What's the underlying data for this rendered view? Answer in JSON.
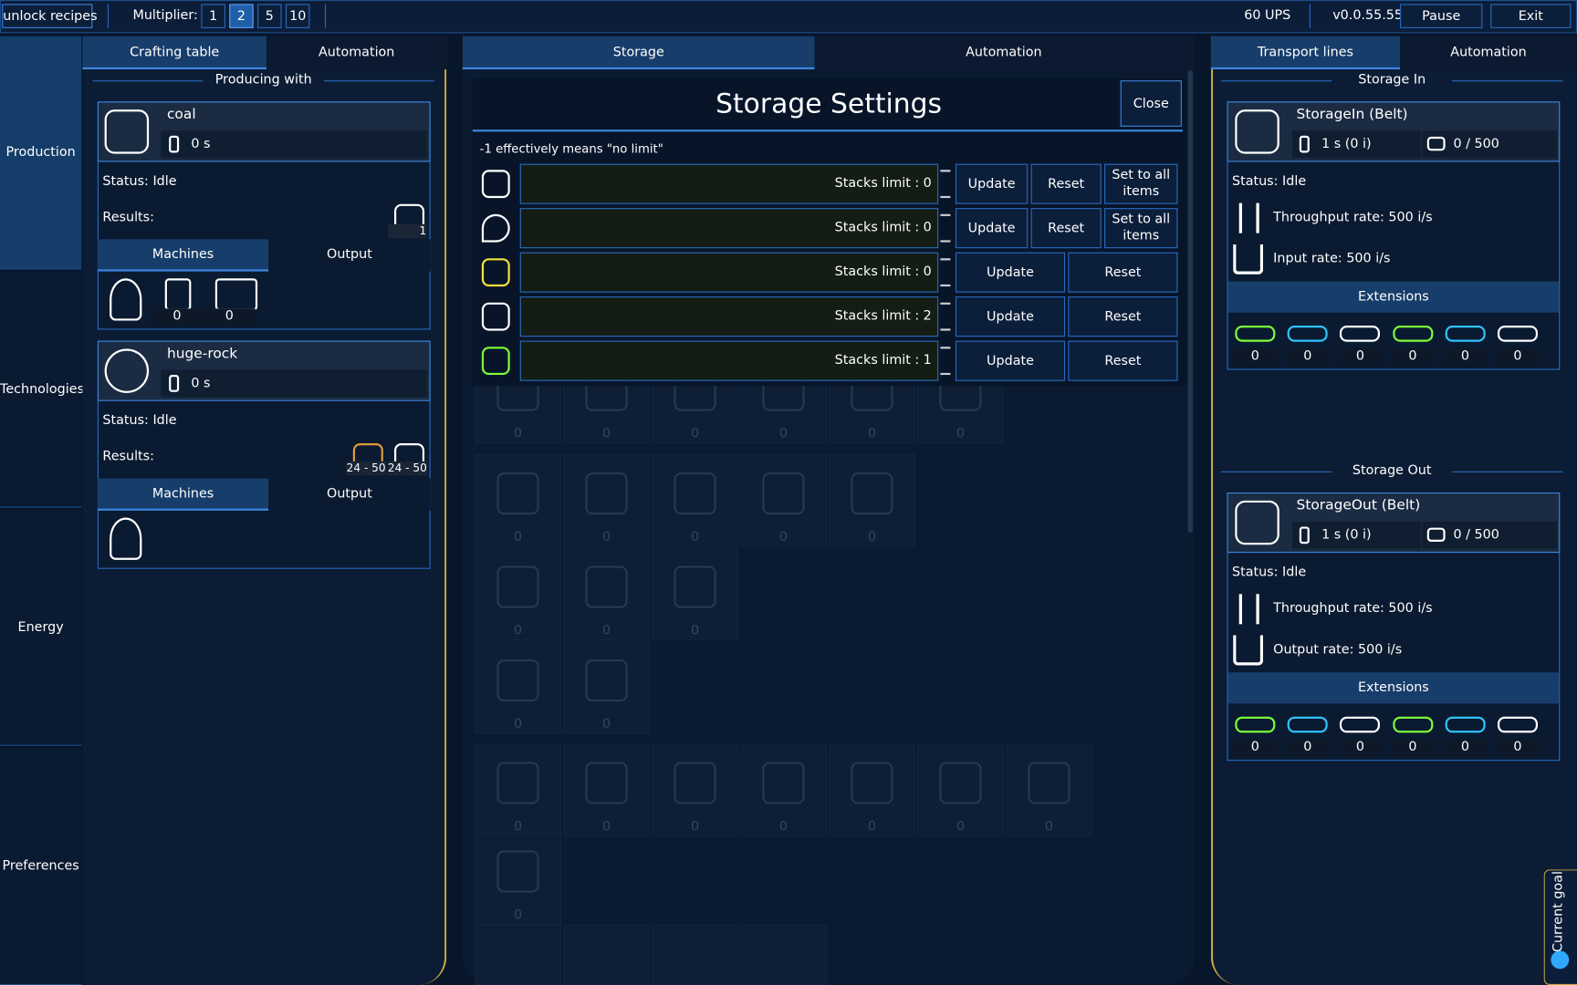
{
  "top_bar": {
    "unlock_button": "unlock recipes",
    "multiplier_label": "Multiplier:",
    "multipliers": [
      "1",
      "2",
      "5",
      "10"
    ],
    "ups": "60 UPS",
    "version": "v0.0.55.55",
    "pause": "Pause",
    "exit": "Exit"
  },
  "sidebar": [
    "Production",
    "Technologies",
    "Energy",
    "Preferences"
  ],
  "left_panel": {
    "tabs": [
      "Crafting table",
      "Automation"
    ],
    "heading": "Producing with",
    "recipes": [
      {
        "name": "coal",
        "time": "0 s",
        "status": "Status: Idle",
        "results_label": "Results:",
        "results": [
          "1"
        ],
        "machines_tab": "Machines",
        "output_tab": "Output",
        "machine_counts": [
          "0",
          "0"
        ]
      },
      {
        "name": "huge-rock",
        "time": "0 s",
        "status": "Status: Idle",
        "results_label": "Results:",
        "results": [
          "24 - 50",
          "24 - 50"
        ],
        "machines_tab": "Machines",
        "output_tab": "Output"
      }
    ]
  },
  "center_panel": {
    "tabs": [
      "Storage",
      "Automation"
    ],
    "background_counts": [
      [
        "0",
        "0",
        "0",
        "0",
        "0",
        "0"
      ],
      [
        "0",
        "0",
        "0",
        "0",
        "0"
      ],
      [
        "0",
        "0",
        "0"
      ],
      [
        "0",
        "0"
      ],
      [
        "0",
        "0",
        "0",
        "0",
        "0",
        "0",
        "0"
      ],
      [
        "0"
      ]
    ],
    "dialog": {
      "title": "Storage Settings",
      "close": "Close",
      "note": "-1 effectively means \"no limit\"",
      "rows": [
        {
          "label": "Stacks limit :",
          "value": "0",
          "buttons": [
            "Update",
            "Reset",
            "Set to all items"
          ]
        },
        {
          "label": "Stacks limit :",
          "value": "0",
          "buttons": [
            "Update",
            "Reset",
            "Set to all items"
          ]
        },
        {
          "label": "Stacks limit :",
          "value": "0",
          "buttons": [
            "Update",
            "Reset"
          ]
        },
        {
          "label": "Stacks limit :",
          "value": "2",
          "buttons": [
            "Update",
            "Reset"
          ]
        },
        {
          "label": "Stacks limit :",
          "value": "1",
          "buttons": [
            "Update",
            "Reset"
          ]
        }
      ]
    }
  },
  "right_panel": {
    "tabs": [
      "Transport lines",
      "Automation"
    ],
    "sections": [
      {
        "heading": "Storage In",
        "name": "StorageIn (Belt)",
        "time": "1 s (0 i)",
        "capacity": "0 / 500",
        "status": "Status: Idle",
        "throughput": "Throughput rate: 500 i/s",
        "rate": "Input rate: 500 i/s",
        "extensions": "Extensions",
        "counts": [
          "0",
          "0",
          "0",
          "0",
          "0",
          "0"
        ]
      },
      {
        "heading": "Storage Out",
        "name": "StorageOut (Belt)",
        "time": "1 s (0 i)",
        "capacity": "0 / 500",
        "status": "Status: Idle",
        "throughput": "Throughput rate: 500 i/s",
        "rate": "Output rate: 500 i/s",
        "extensions": "Extensions",
        "counts": [
          "0",
          "0",
          "0",
          "0",
          "0",
          "0"
        ]
      }
    ]
  },
  "current_goal": "Current goal"
}
